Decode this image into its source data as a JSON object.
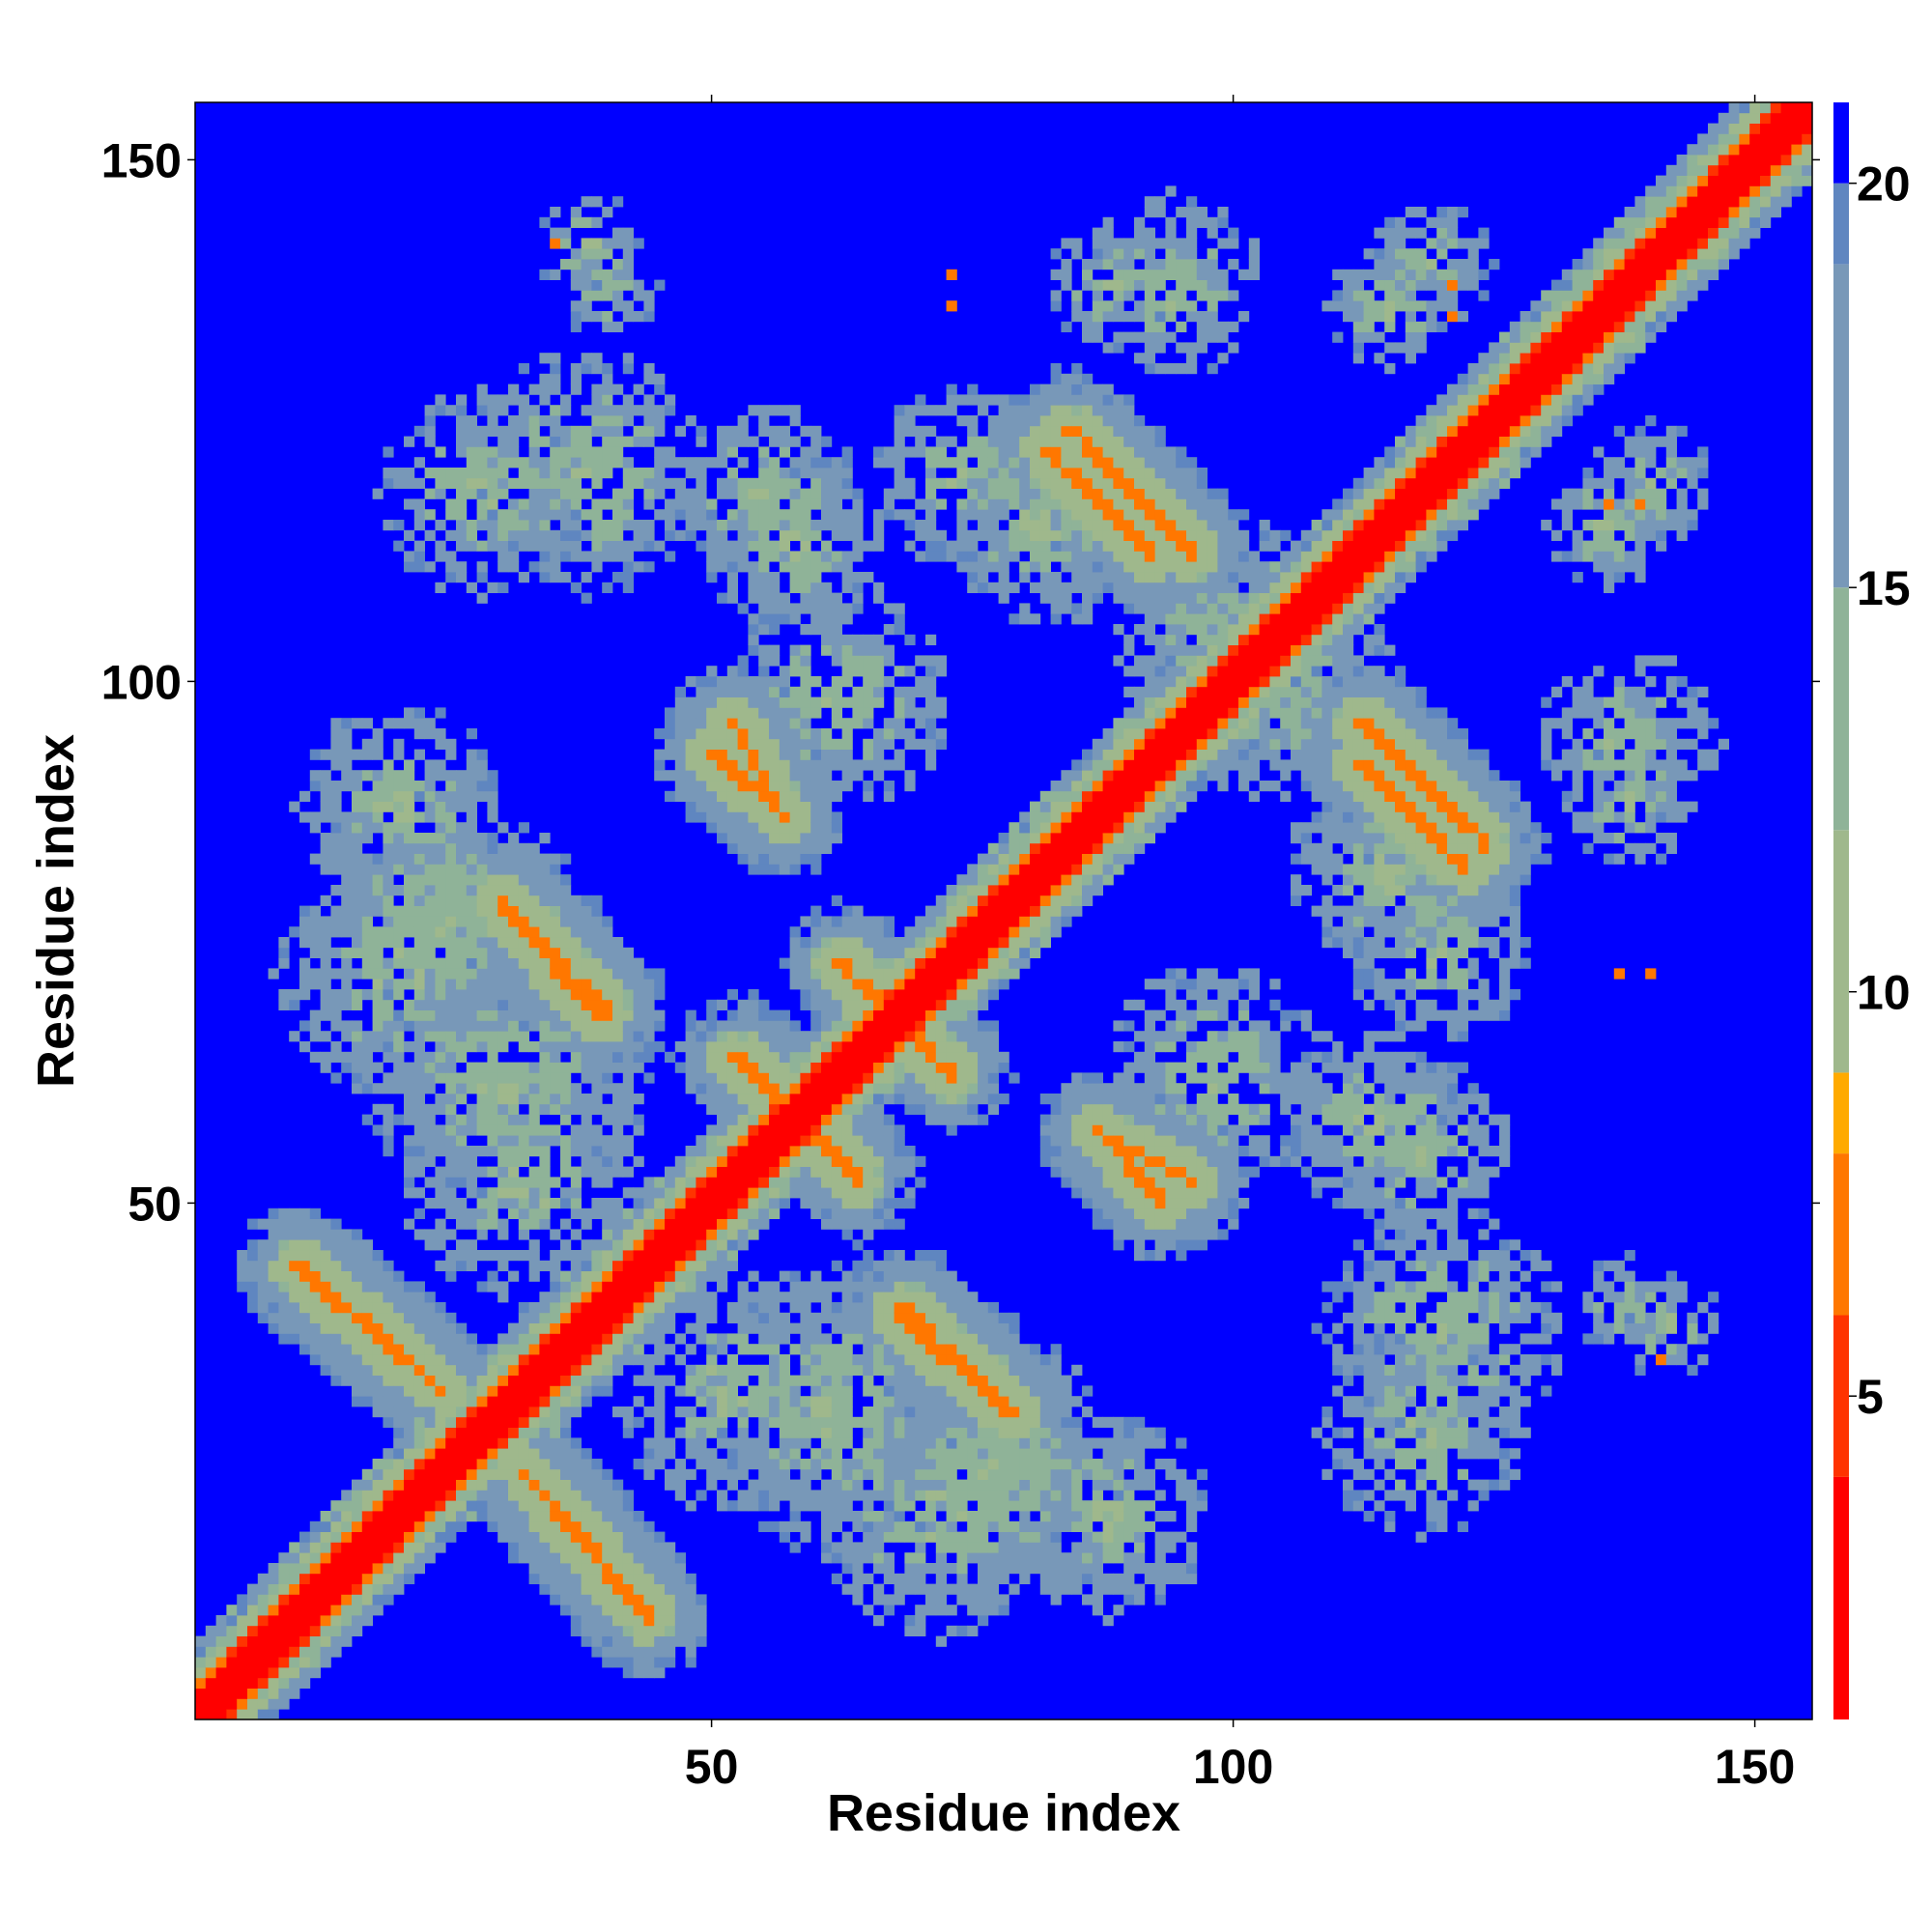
{
  "chart_data": {
    "type": "heatmap",
    "title": "",
    "xlabel": "Residue index",
    "ylabel": "Residue index",
    "n_residues": 155,
    "xlim": [
      1,
      155
    ],
    "ylim": [
      1,
      155
    ],
    "x_ticks": [
      50,
      100,
      150
    ],
    "y_ticks": [
      50,
      100,
      150
    ],
    "colorbar": {
      "range": [
        1,
        21
      ],
      "ticks": [
        5,
        10,
        15,
        20
      ],
      "color_stops": [
        {
          "value": 1,
          "color": "#ff0000"
        },
        {
          "value": 4,
          "color": "#ff3300"
        },
        {
          "value": 6,
          "color": "#ff7700"
        },
        {
          "value": 8,
          "color": "#ffaa00"
        },
        {
          "value": 9,
          "color": "#9fb88c"
        },
        {
          "value": 12,
          "color": "#8fb398"
        },
        {
          "value": 15,
          "color": "#7898b8"
        },
        {
          "value": 19,
          "color": "#5f86c0"
        },
        {
          "value": 20,
          "color": "#0000ff"
        }
      ],
      "background_color": "#0000ff"
    },
    "diagonal": {
      "color": "#ff0000",
      "halo_color": "#ff8800"
    },
    "contact_bands": [
      {
        "start": [
          10,
          44
        ],
        "end": [
          22,
          34
        ],
        "kind": "antiparallel"
      },
      {
        "start": [
          32,
          24
        ],
        "end": [
          42,
          12
        ],
        "kind": "antiparallel"
      },
      {
        "start": [
          30,
          79
        ],
        "end": [
          40,
          68
        ],
        "kind": "antiparallel"
      },
      {
        "start": [
          52,
          96
        ],
        "end": [
          56,
          88
        ],
        "kind": "antiparallel"
      },
      {
        "start": [
          62,
          73
        ],
        "end": [
          68,
          67
        ],
        "kind": "antiparallel"
      },
      {
        "start": [
          68,
          39
        ],
        "end": [
          78,
          30
        ],
        "kind": "antiparallel"
      },
      {
        "start": [
          82,
          122
        ],
        "end": [
          92,
          112
        ],
        "kind": "antiparallel"
      },
      {
        "start": [
          87,
          57
        ],
        "end": [
          93,
          50
        ],
        "kind": "antiparallel"
      },
      {
        "start": [
          112,
          96
        ],
        "end": [
          124,
          84
        ],
        "kind": "antiparallel"
      },
      {
        "start": [
          54,
          62
        ],
        "end": [
          64,
          52
        ],
        "kind": "antiparallel"
      }
    ],
    "contact_clusters": [
      {
        "center": [
          38,
          120
        ],
        "radius": 12
      },
      {
        "center": [
          55,
          118
        ],
        "radius": 9
      },
      {
        "center": [
          82,
          115
        ],
        "radius": 10
      },
      {
        "center": [
          24,
          78
        ],
        "radius": 13
      },
      {
        "center": [
          32,
          52
        ],
        "radius": 12
      },
      {
        "center": [
          62,
          30
        ],
        "radius": 14
      },
      {
        "center": [
          72,
          20
        ],
        "radius": 12
      },
      {
        "center": [
          88,
          20
        ],
        "radius": 10
      },
      {
        "center": [
          98,
          62
        ],
        "radius": 11
      },
      {
        "center": [
          113,
          58
        ],
        "radius": 9
      },
      {
        "center": [
          104,
          100
        ],
        "radius": 12
      },
      {
        "center": [
          118,
          28
        ],
        "radius": 10
      },
      {
        "center": [
          120,
          74
        ],
        "radius": 9
      },
      {
        "center": [
          94,
          138
        ],
        "radius": 9
      },
      {
        "center": [
          136,
          115
        ],
        "radius": 6
      },
      {
        "center": [
          138,
          88
        ],
        "radius": 6
      },
      {
        "center": [
          138,
          40
        ],
        "radius": 5
      },
      {
        "center": [
          38,
          142
        ],
        "radius": 5
      },
      {
        "center": [
          119,
          140
        ],
        "radius": 6
      }
    ],
    "isolated_close_contacts": [
      [
        35,
        142
      ],
      [
        73,
        139
      ],
      [
        73,
        136
      ],
      [
        137,
        72
      ],
      [
        140,
        72
      ],
      [
        141,
        35
      ],
      [
        121,
        138
      ],
      [
        121,
        135
      ],
      [
        139,
        117
      ],
      [
        136,
        117
      ]
    ]
  }
}
